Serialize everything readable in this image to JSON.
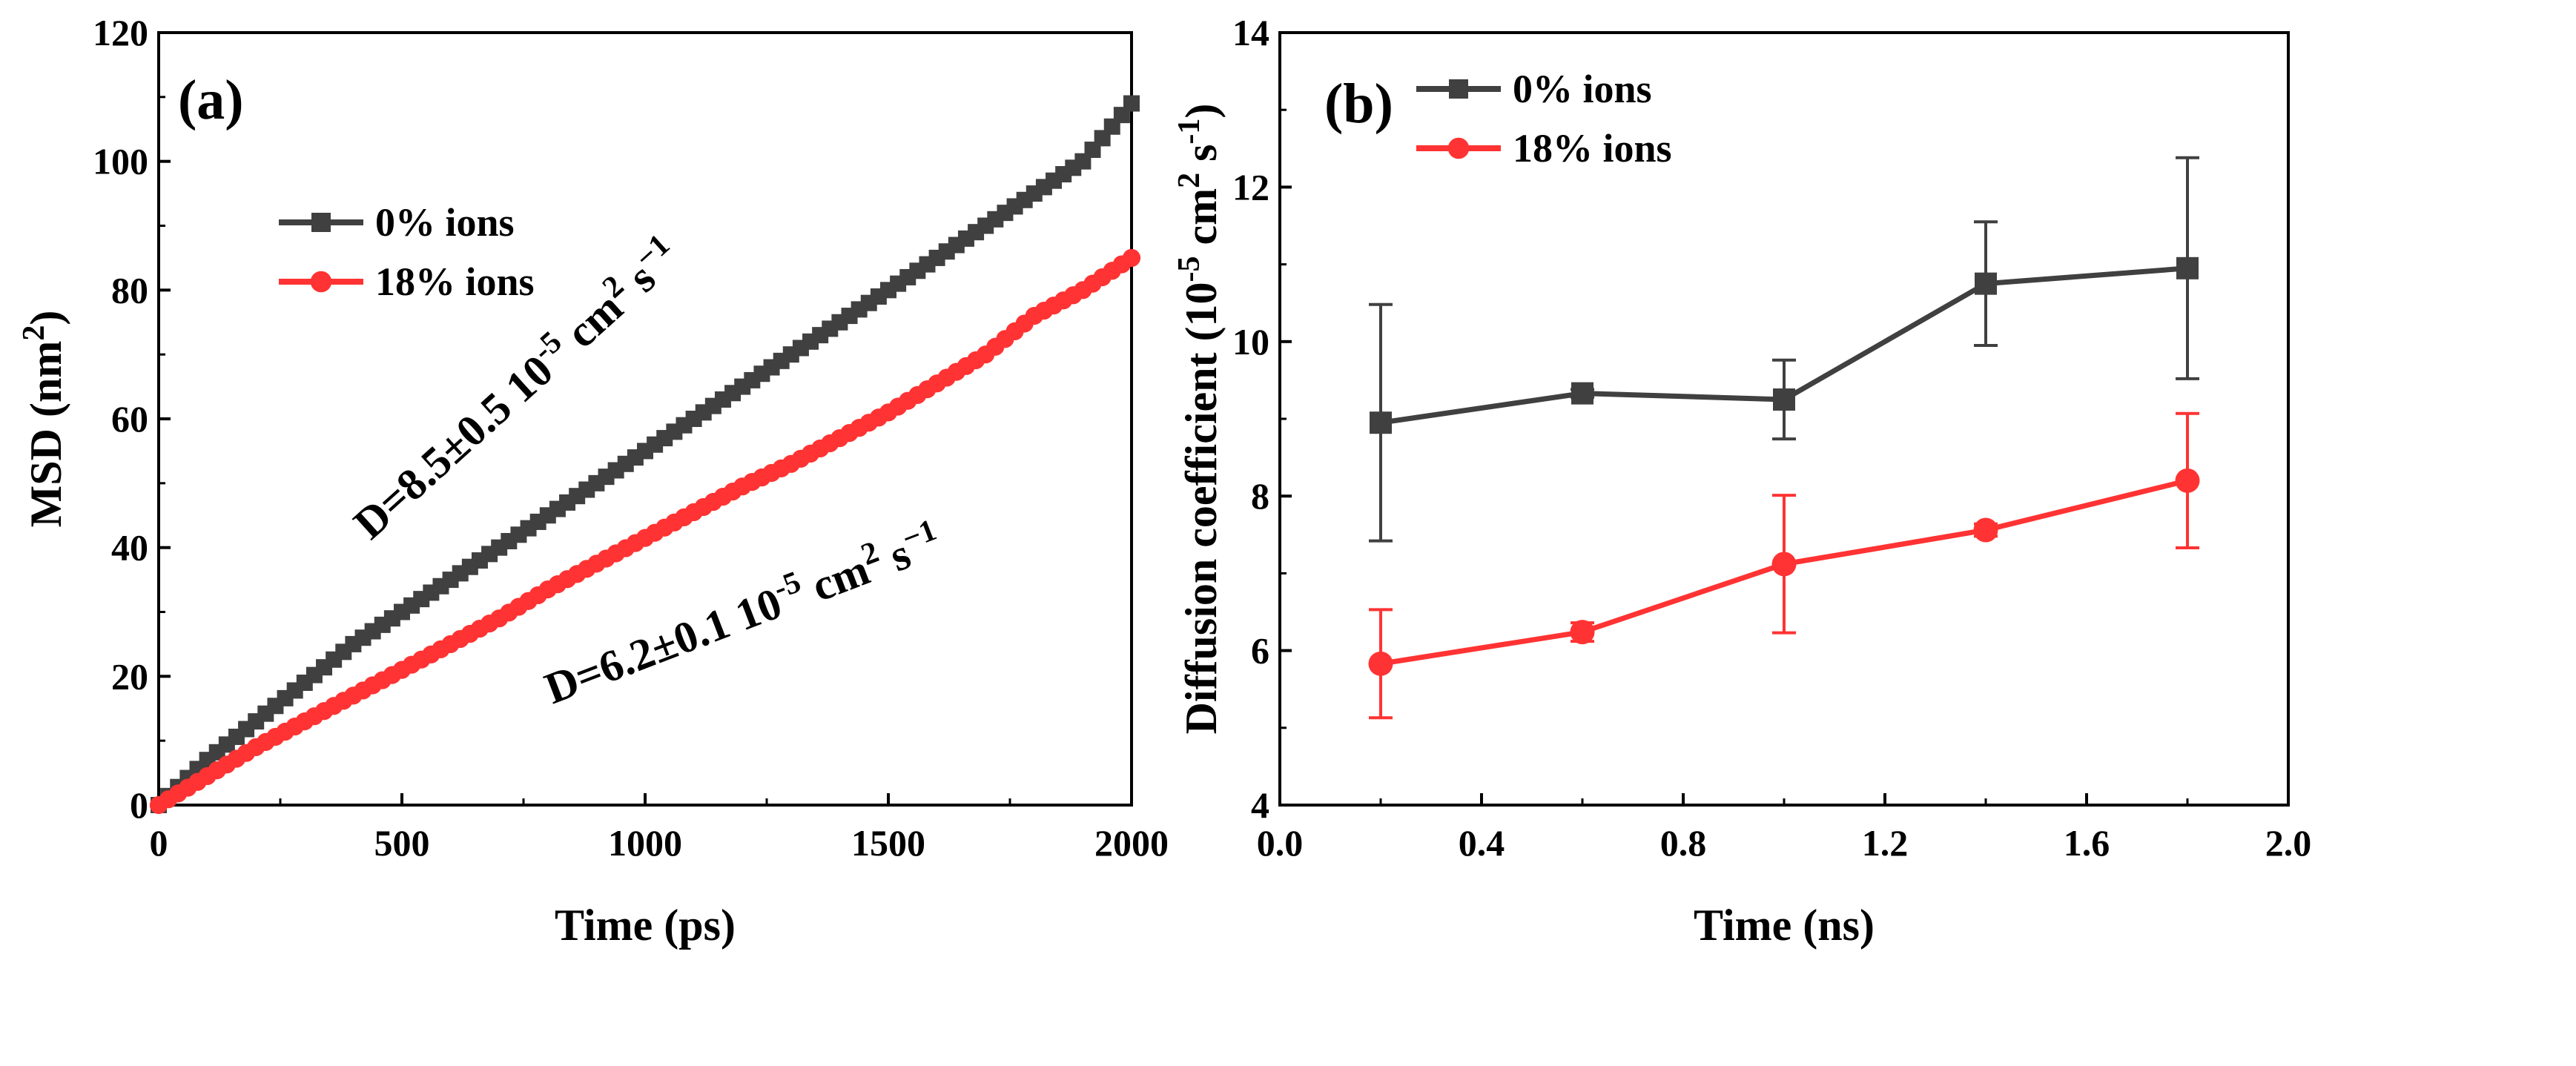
{
  "chart_data": [
    {
      "type": "scatter",
      "panel_label": "(a)",
      "xlabel": "Time (ps)",
      "ylabel_main": "MSD (nm",
      "ylabel_sup": "2",
      "ylabel_end": ")",
      "xlim": [
        0,
        2000
      ],
      "ylim": [
        0,
        120
      ],
      "xticks": [
        "0",
        "500",
        "1000",
        "1500",
        "2000"
      ],
      "xtick_values": [
        0,
        500,
        1000,
        1500,
        2000
      ],
      "yticks": [
        "0",
        "20",
        "40",
        "60",
        "80",
        "100",
        "120"
      ],
      "ytick_values": [
        0,
        20,
        40,
        60,
        80,
        100,
        120
      ],
      "legend_position": "upper-left",
      "x": [
        0,
        100,
        200,
        300,
        400,
        500,
        600,
        700,
        800,
        900,
        1000,
        1100,
        1200,
        1300,
        1400,
        1500,
        1600,
        1700,
        1800,
        1900,
        2000
      ],
      "series": [
        {
          "name": "0% ions",
          "color": "#404040",
          "marker": "square",
          "values": [
            0,
            7,
            13,
            19,
            25,
            30,
            35,
            40,
            45,
            50,
            55,
            60,
            65,
            70,
            75,
            80,
            85,
            90,
            95,
            100,
            109
          ]
        },
        {
          "name": "18% ions",
          "color": "#ff3333",
          "marker": "circle",
          "values": [
            0,
            4.5,
            9,
            13,
            17,
            21,
            25,
            29,
            33.5,
            37.5,
            41.5,
            45.5,
            49.5,
            53,
            57,
            61,
            65.5,
            70,
            76,
            80,
            85
          ]
        }
      ],
      "annotations": [
        {
          "pre": "D=8.5±0.5 10",
          "sup1": "-5",
          "mid": " cm",
          "sup2": "2",
          "post": " s",
          "sup3": "−1",
          "color": "#000000"
        },
        {
          "pre": "D=6.2±0.1 10",
          "sup1": "-5",
          "mid": " cm",
          "sup2": "2",
          "post": " s",
          "sup3": "−1",
          "color": "#e00000"
        }
      ]
    },
    {
      "type": "line",
      "panel_label": "(b)",
      "xlabel": "Time (ns)",
      "ylabel_main": "Diffusion coefficient (10",
      "ylabel_sup1": "-5",
      "ylabel_mid": " cm",
      "ylabel_sup2": "2",
      "ylabel_mid2": " s",
      "ylabel_sup3": "-1",
      "ylabel_end": ")",
      "xlim": [
        0,
        2.0
      ],
      "ylim": [
        4,
        14
      ],
      "xticks": [
        "0.0",
        "0.4",
        "0.8",
        "1.2",
        "1.6",
        "2.0"
      ],
      "xtick_values": [
        0,
        0.4,
        0.8,
        1.2,
        1.6,
        2.0
      ],
      "yticks": [
        "4",
        "6",
        "8",
        "10",
        "12",
        "14"
      ],
      "ytick_values": [
        4,
        6,
        8,
        10,
        12,
        14
      ],
      "legend_position": "top-left",
      "x": [
        0.2,
        0.6,
        1.0,
        1.4,
        1.8
      ],
      "series": [
        {
          "name": "0% ions",
          "color": "#404040",
          "marker": "square",
          "values": [
            8.95,
            9.33,
            9.25,
            10.75,
            10.95
          ],
          "errors": [
            1.53,
            0.05,
            0.51,
            0.8,
            1.43
          ]
        },
        {
          "name": "18% ions",
          "color": "#ff3333",
          "marker": "circle",
          "values": [
            5.83,
            6.24,
            7.12,
            7.56,
            8.2
          ],
          "errors": [
            0.7,
            0.12,
            0.89,
            0.08,
            0.87
          ]
        }
      ]
    }
  ]
}
